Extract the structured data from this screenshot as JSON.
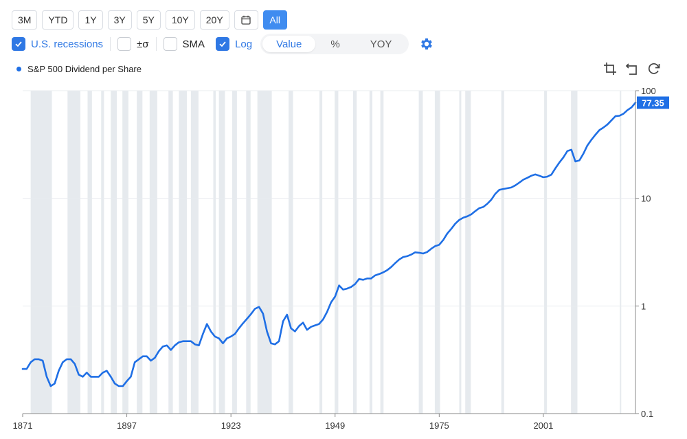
{
  "range_buttons": [
    "3M",
    "YTD",
    "1Y",
    "3Y",
    "5Y",
    "10Y",
    "20Y",
    "",
    "All"
  ],
  "options": {
    "recessions_label": "U.S. recessions",
    "sigma_label": "±σ",
    "sma_label": "SMA",
    "log_label": "Log"
  },
  "view_modes": [
    "Value",
    "%",
    "YOY"
  ],
  "colors": {
    "line": "#1f6fe5",
    "recession": "#e6eaee",
    "accent": "#2f78e4",
    "active_button": "#3f8cf0"
  },
  "chart_data": {
    "type": "line",
    "title": "",
    "xlabel": "",
    "ylabel": "",
    "y_scale": "log",
    "ylim": [
      0.1,
      100
    ],
    "xlim": [
      1871,
      2024
    ],
    "x_ticks": [
      "1871",
      "1897",
      "1923",
      "1949",
      "1975",
      "2001"
    ],
    "y_ticks": [
      "0.1",
      "1",
      "10",
      "100"
    ],
    "last_value_label": "77.35",
    "grid": "horizontal",
    "legend_position": "top-left",
    "recessions": [
      [
        1873.0,
        1878.3
      ],
      [
        1882.2,
        1885.4
      ],
      [
        1887.2,
        1888.3
      ],
      [
        1890.6,
        1891.3
      ],
      [
        1893.0,
        1894.5
      ],
      [
        1895.9,
        1897.4
      ],
      [
        1899.5,
        1900.9
      ],
      [
        1902.7,
        1904.6
      ],
      [
        1907.4,
        1908.5
      ],
      [
        1910.0,
        1912.0
      ],
      [
        1913.0,
        1914.9
      ],
      [
        1918.6,
        1919.2
      ],
      [
        1920.0,
        1921.5
      ],
      [
        1923.3,
        1924.5
      ],
      [
        1926.8,
        1927.9
      ],
      [
        1929.6,
        1933.2
      ],
      [
        1937.4,
        1938.5
      ],
      [
        1945.1,
        1945.8
      ],
      [
        1948.9,
        1949.8
      ],
      [
        1953.5,
        1954.4
      ],
      [
        1957.6,
        1958.3
      ],
      [
        1960.3,
        1961.1
      ],
      [
        1969.9,
        1970.9
      ],
      [
        1973.9,
        1975.2
      ],
      [
        1980.0,
        1980.5
      ],
      [
        1981.5,
        1982.9
      ],
      [
        1990.5,
        1991.2
      ],
      [
        2001.2,
        2001.9
      ],
      [
        2007.9,
        2009.5
      ],
      [
        2020.1,
        2020.4
      ]
    ],
    "series": [
      {
        "name": "S&P 500 Dividend per Share",
        "points": [
          [
            1871,
            0.26
          ],
          [
            1872,
            0.26
          ],
          [
            1873,
            0.3
          ],
          [
            1874,
            0.32
          ],
          [
            1875,
            0.32
          ],
          [
            1876,
            0.31
          ],
          [
            1877,
            0.22
          ],
          [
            1878,
            0.18
          ],
          [
            1879,
            0.19
          ],
          [
            1880,
            0.25
          ],
          [
            1881,
            0.3
          ],
          [
            1882,
            0.32
          ],
          [
            1883,
            0.32
          ],
          [
            1884,
            0.29
          ],
          [
            1885,
            0.23
          ],
          [
            1886,
            0.22
          ],
          [
            1887,
            0.24
          ],
          [
            1888,
            0.22
          ],
          [
            1889,
            0.22
          ],
          [
            1890,
            0.22
          ],
          [
            1891,
            0.24
          ],
          [
            1892,
            0.25
          ],
          [
            1893,
            0.22
          ],
          [
            1894,
            0.19
          ],
          [
            1895,
            0.18
          ],
          [
            1896,
            0.18
          ],
          [
            1897,
            0.2
          ],
          [
            1898,
            0.22
          ],
          [
            1899,
            0.3
          ],
          [
            1900,
            0.32
          ],
          [
            1901,
            0.34
          ],
          [
            1902,
            0.34
          ],
          [
            1903,
            0.31
          ],
          [
            1904,
            0.33
          ],
          [
            1905,
            0.38
          ],
          [
            1906,
            0.42
          ],
          [
            1907,
            0.43
          ],
          [
            1908,
            0.39
          ],
          [
            1909,
            0.43
          ],
          [
            1910,
            0.46
          ],
          [
            1911,
            0.47
          ],
          [
            1912,
            0.47
          ],
          [
            1913,
            0.47
          ],
          [
            1914,
            0.44
          ],
          [
            1915,
            0.43
          ],
          [
            1916,
            0.55
          ],
          [
            1917,
            0.68
          ],
          [
            1918,
            0.58
          ],
          [
            1919,
            0.52
          ],
          [
            1920,
            0.5
          ],
          [
            1921,
            0.45
          ],
          [
            1922,
            0.5
          ],
          [
            1923,
            0.52
          ],
          [
            1924,
            0.55
          ],
          [
            1925,
            0.62
          ],
          [
            1926,
            0.69
          ],
          [
            1927,
            0.76
          ],
          [
            1928,
            0.84
          ],
          [
            1929,
            0.94
          ],
          [
            1930,
            0.98
          ],
          [
            1931,
            0.85
          ],
          [
            1932,
            0.58
          ],
          [
            1933,
            0.45
          ],
          [
            1934,
            0.44
          ],
          [
            1935,
            0.47
          ],
          [
            1936,
            0.72
          ],
          [
            1937,
            0.83
          ],
          [
            1938,
            0.62
          ],
          [
            1939,
            0.58
          ],
          [
            1940,
            0.65
          ],
          [
            1941,
            0.7
          ],
          [
            1942,
            0.6
          ],
          [
            1943,
            0.64
          ],
          [
            1944,
            0.66
          ],
          [
            1945,
            0.68
          ],
          [
            1946,
            0.75
          ],
          [
            1947,
            0.88
          ],
          [
            1948,
            1.08
          ],
          [
            1949,
            1.22
          ],
          [
            1950,
            1.55
          ],
          [
            1951,
            1.42
          ],
          [
            1952,
            1.45
          ],
          [
            1953,
            1.5
          ],
          [
            1954,
            1.6
          ],
          [
            1955,
            1.78
          ],
          [
            1956,
            1.75
          ],
          [
            1957,
            1.8
          ],
          [
            1958,
            1.8
          ],
          [
            1959,
            1.92
          ],
          [
            1960,
            1.98
          ],
          [
            1961,
            2.05
          ],
          [
            1962,
            2.15
          ],
          [
            1963,
            2.3
          ],
          [
            1964,
            2.5
          ],
          [
            1965,
            2.7
          ],
          [
            1966,
            2.85
          ],
          [
            1967,
            2.9
          ],
          [
            1968,
            3.0
          ],
          [
            1969,
            3.15
          ],
          [
            1970,
            3.12
          ],
          [
            1971,
            3.07
          ],
          [
            1972,
            3.17
          ],
          [
            1973,
            3.4
          ],
          [
            1974,
            3.6
          ],
          [
            1975,
            3.7
          ],
          [
            1976,
            4.1
          ],
          [
            1977,
            4.7
          ],
          [
            1978,
            5.2
          ],
          [
            1979,
            5.8
          ],
          [
            1980,
            6.3
          ],
          [
            1981,
            6.6
          ],
          [
            1982,
            6.8
          ],
          [
            1983,
            7.1
          ],
          [
            1984,
            7.6
          ],
          [
            1985,
            8.1
          ],
          [
            1986,
            8.3
          ],
          [
            1987,
            8.9
          ],
          [
            1988,
            9.7
          ],
          [
            1989,
            11.0
          ],
          [
            1990,
            12.0
          ],
          [
            1991,
            12.2
          ],
          [
            1992,
            12.4
          ],
          [
            1993,
            12.6
          ],
          [
            1994,
            13.2
          ],
          [
            1995,
            14.0
          ],
          [
            1996,
            14.9
          ],
          [
            1997,
            15.5
          ],
          [
            1998,
            16.2
          ],
          [
            1999,
            16.7
          ],
          [
            2000,
            16.2
          ],
          [
            2001,
            15.7
          ],
          [
            2002,
            15.9
          ],
          [
            2003,
            16.6
          ],
          [
            2004,
            19.0
          ],
          [
            2005,
            21.5
          ],
          [
            2006,
            24.0
          ],
          [
            2007,
            27.5
          ],
          [
            2008,
            28.3
          ],
          [
            2009,
            22.0
          ],
          [
            2010,
            22.5
          ],
          [
            2011,
            26.0
          ],
          [
            2012,
            31.0
          ],
          [
            2013,
            35.0
          ],
          [
            2014,
            39.0
          ],
          [
            2015,
            43.0
          ],
          [
            2016,
            45.5
          ],
          [
            2017,
            48.5
          ],
          [
            2018,
            53.0
          ],
          [
            2019,
            58.0
          ],
          [
            2020,
            58.5
          ],
          [
            2021,
            61.0
          ],
          [
            2022,
            66.0
          ],
          [
            2023,
            70.0
          ],
          [
            2024,
            77.35
          ]
        ]
      }
    ]
  }
}
